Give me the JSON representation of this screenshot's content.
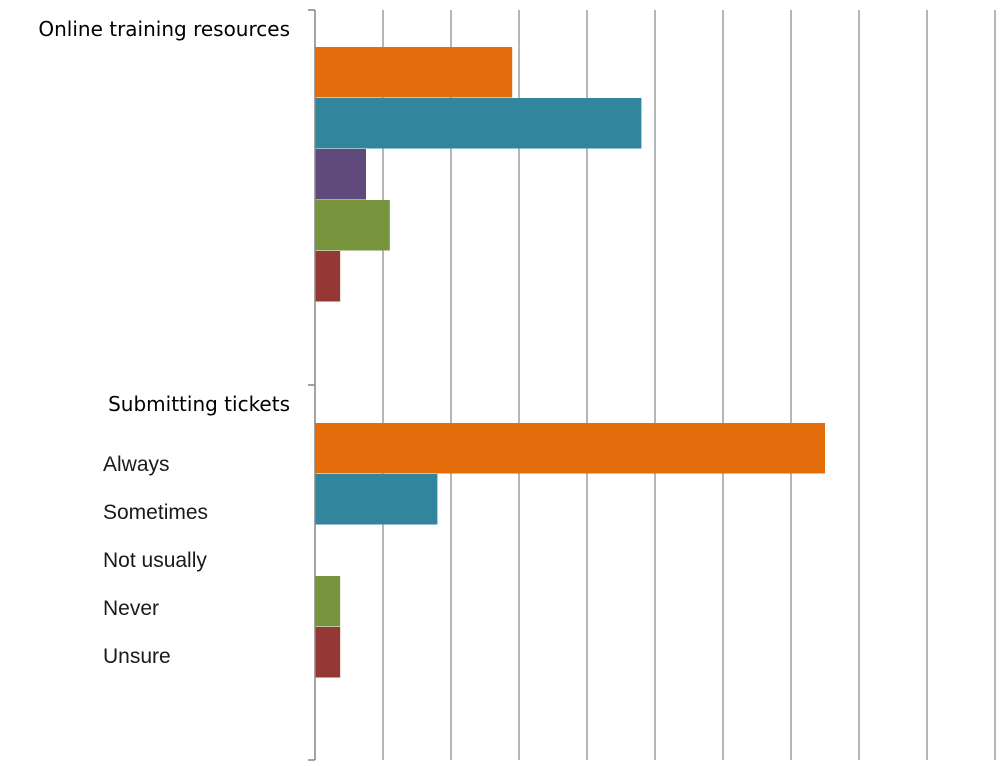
{
  "chart_data": {
    "type": "bar",
    "orientation": "horizontal",
    "title": "",
    "xlabel": "",
    "ylabel": "",
    "categories": [
      "Online training resources",
      "Submitting tickets"
    ],
    "series": [
      {
        "name": "Always",
        "color": "#e46c0a",
        "values": [
          29,
          75
        ]
      },
      {
        "name": "Sometimes",
        "color": "#31859c",
        "values": [
          48,
          18
        ]
      },
      {
        "name": "Not usually",
        "color": "#604a7b",
        "values": [
          7.5,
          0
        ]
      },
      {
        "name": "Never",
        "color": "#77933c",
        "values": [
          11,
          3.7
        ]
      },
      {
        "name": "Unsure",
        "color": "#953735",
        "values": [
          3.7,
          3.7
        ]
      }
    ],
    "xlim": [
      0,
      100
    ],
    "x_gridlines": [
      0,
      10,
      20,
      30,
      40,
      50,
      60,
      70,
      80,
      90,
      100
    ],
    "grid": true,
    "legend": "bottom-left"
  }
}
